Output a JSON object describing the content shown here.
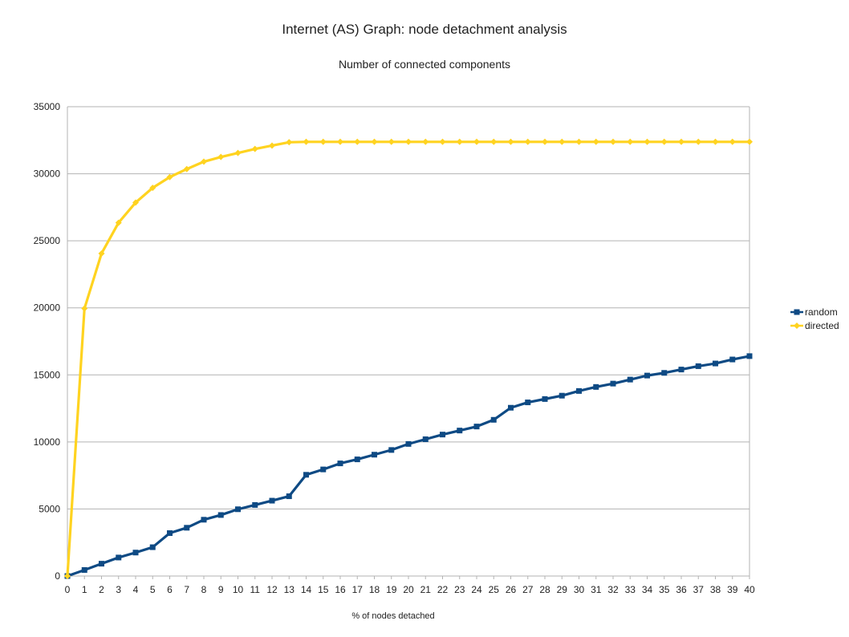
{
  "chart_data": {
    "type": "line",
    "title": "Internet (AS) Graph: node detachment analysis",
    "subtitle": "Number of connected components",
    "xlabel": "% of nodes detached",
    "ylabel": "",
    "ylim": [
      0,
      35000
    ],
    "yticks": [
      0,
      5000,
      10000,
      15000,
      20000,
      25000,
      30000,
      35000
    ],
    "x": [
      0,
      1,
      2,
      3,
      4,
      5,
      6,
      7,
      8,
      9,
      10,
      11,
      12,
      13,
      14,
      15,
      16,
      17,
      18,
      19,
      20,
      21,
      22,
      23,
      24,
      25,
      26,
      27,
      28,
      29,
      30,
      31,
      32,
      33,
      34,
      35,
      36,
      37,
      38,
      39,
      40
    ],
    "grid": "horizontal",
    "legend_position": "right",
    "series": [
      {
        "name": "random",
        "color": "#0e4a84",
        "marker": "square",
        "values": [
          0,
          450,
          920,
          1380,
          1750,
          2150,
          3200,
          3600,
          4200,
          4550,
          4980,
          5300,
          5620,
          5950,
          7550,
          7950,
          8400,
          8700,
          9050,
          9400,
          9850,
          10200,
          10550,
          10850,
          11150,
          11650,
          12550,
          12950,
          13200,
          13450,
          13800,
          14100,
          14350,
          14650,
          14950,
          15150,
          15400,
          15650,
          15850,
          16150,
          16400
        ]
      },
      {
        "name": "directed",
        "color": "#ffd320",
        "marker": "diamond",
        "values": [
          0,
          19950,
          24050,
          26350,
          27850,
          28950,
          29750,
          30350,
          30900,
          31250,
          31550,
          31850,
          32100,
          32350,
          32380,
          32380,
          32380,
          32380,
          32380,
          32380,
          32380,
          32380,
          32380,
          32380,
          32380,
          32380,
          32380,
          32380,
          32380,
          32380,
          32380,
          32380,
          32380,
          32380,
          32380,
          32380,
          32380,
          32380,
          32380,
          32380,
          32380
        ]
      }
    ]
  }
}
